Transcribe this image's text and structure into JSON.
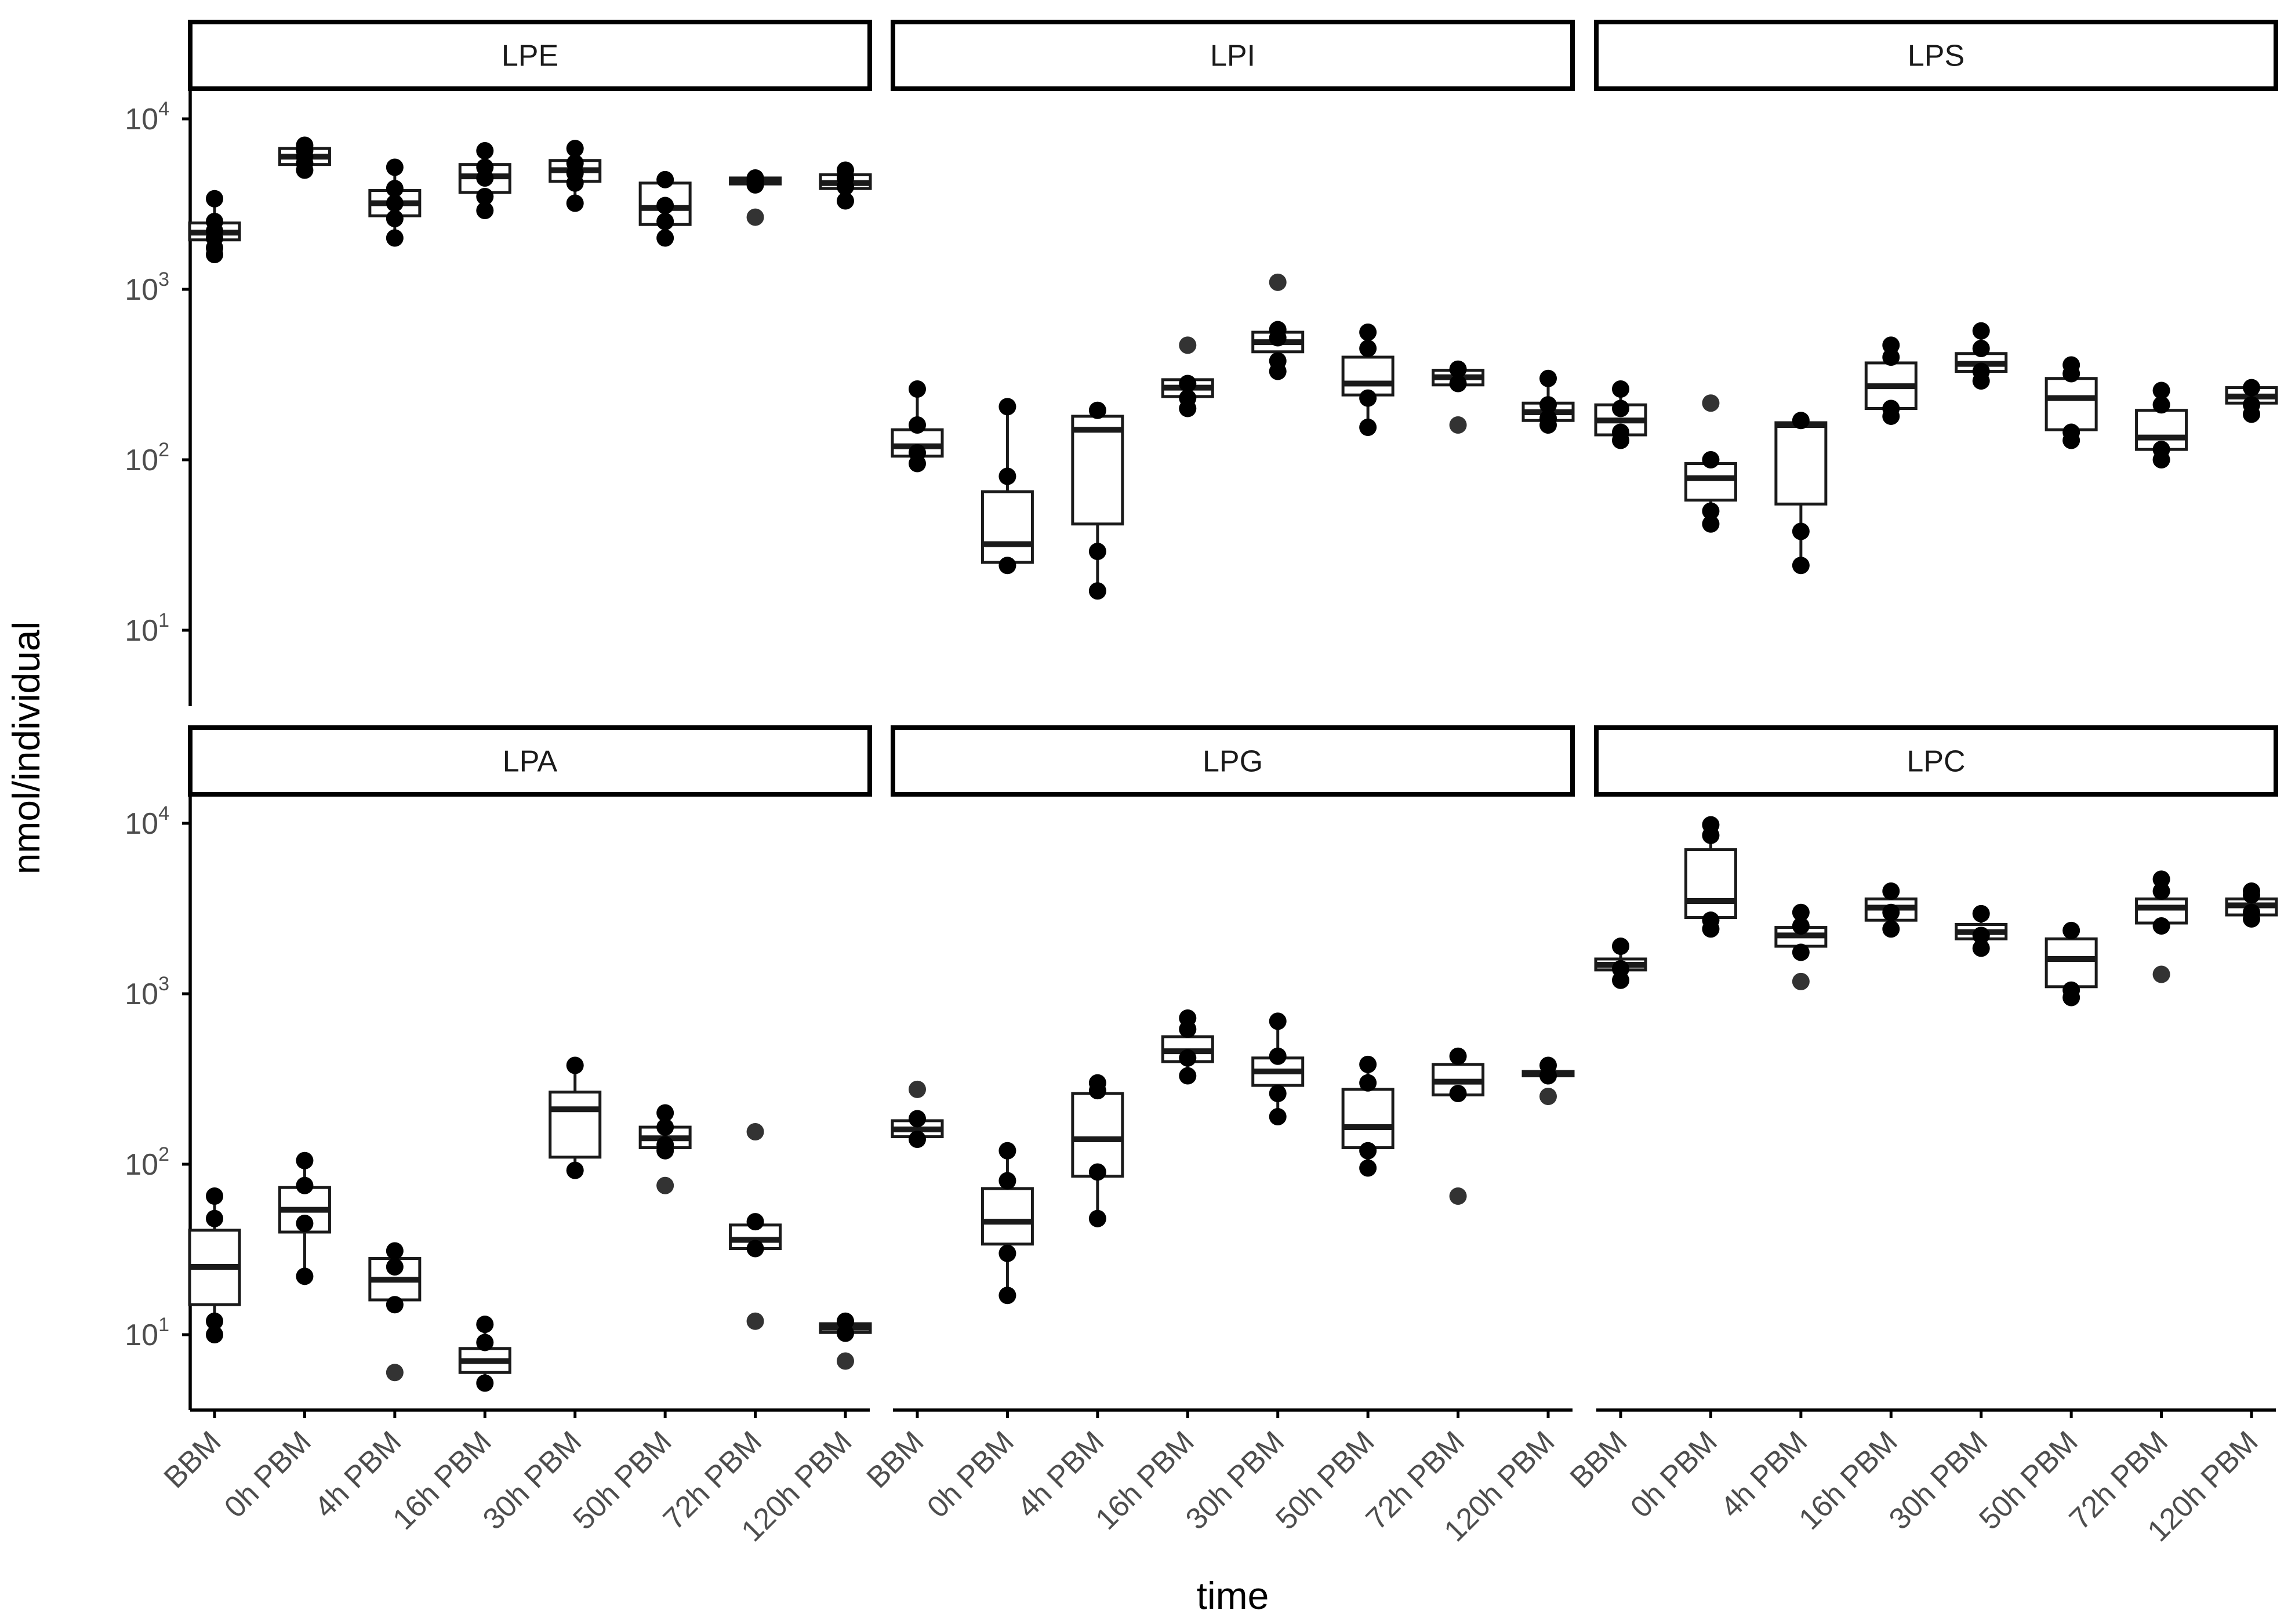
{
  "chart_data": {
    "type": "box",
    "scale": "log10",
    "xlabel": "time",
    "ylabel": "nmol/individual",
    "categories": [
      "BBM",
      "0h PBM",
      "4h PBM",
      "16h PBM",
      "30h PBM",
      "50h PBM",
      "72h PBM",
      "120h PBM"
    ],
    "y_ticks": [
      {
        "value": 10,
        "base": "10",
        "exp": "1"
      },
      {
        "value": 100,
        "base": "10",
        "exp": "2"
      },
      {
        "value": 1000,
        "base": "10",
        "exp": "3"
      },
      {
        "value": 10000,
        "base": "10",
        "exp": "4"
      }
    ],
    "panels": [
      {
        "name": "LPE",
        "boxes": [
          {
            "q1": 1950,
            "median": 2150,
            "q3": 2450,
            "wlo": 1600,
            "whi": 3400,
            "points": [
              1600,
              1750,
              2000,
              2200,
              2500,
              3400
            ],
            "outliers": []
          },
          {
            "q1": 5400,
            "median": 6000,
            "q3": 6700,
            "wlo": 5000,
            "whi": 7000,
            "points": [
              5000,
              5500,
              6000,
              6500,
              7000
            ],
            "outliers": []
          },
          {
            "q1": 2700,
            "median": 3200,
            "q3": 3800,
            "wlo": 2000,
            "whi": 5200,
            "points": [
              2000,
              2600,
              3200,
              3900,
              5200
            ],
            "outliers": []
          },
          {
            "q1": 3700,
            "median": 4600,
            "q3": 5400,
            "wlo": 2900,
            "whi": 6500,
            "points": [
              2900,
              3500,
              4500,
              5200,
              6500
            ],
            "outliers": []
          },
          {
            "q1": 4300,
            "median": 5000,
            "q3": 5700,
            "wlo": 3200,
            "whi": 6700,
            "points": [
              3200,
              4200,
              4800,
              5500,
              6700
            ],
            "outliers": []
          },
          {
            "q1": 2400,
            "median": 3000,
            "q3": 4200,
            "wlo": 2000,
            "whi": 4400,
            "points": [
              2000,
              2500,
              3100,
              4400
            ],
            "outliers": []
          },
          {
            "q1": 4150,
            "median": 4300,
            "q3": 4500,
            "wlo": 4100,
            "whi": 4600,
            "points": [
              4100,
              4300,
              4500
            ],
            "outliers": [
              2650
            ]
          },
          {
            "q1": 3900,
            "median": 4200,
            "q3": 4700,
            "wlo": 3300,
            "whi": 5000,
            "points": [
              3300,
              4000,
              4500,
              5000
            ],
            "outliers": []
          }
        ]
      },
      {
        "name": "LPI",
        "boxes": [
          {
            "q1": 105,
            "median": 120,
            "q3": 150,
            "wlo": 95,
            "whi": 260,
            "points": [
              95,
              110,
              160,
              260
            ],
            "outliers": []
          },
          {
            "q1": 25,
            "median": 32,
            "q3": 65,
            "wlo": 24,
            "whi": 205,
            "points": [
              24,
              80,
              205
            ],
            "outliers": []
          },
          {
            "q1": 42,
            "median": 150,
            "q3": 180,
            "wlo": 17,
            "whi": 195,
            "points": [
              17,
              29,
              195
            ],
            "outliers": []
          },
          {
            "q1": 235,
            "median": 265,
            "q3": 295,
            "wlo": 200,
            "whi": 300,
            "points": [
              200,
              230,
              280
            ],
            "outliers": [
              470
            ]
          },
          {
            "q1": 430,
            "median": 490,
            "q3": 560,
            "wlo": 330,
            "whi": 600,
            "points": [
              330,
              380,
              520,
              580
            ],
            "outliers": [
              1100
            ]
          },
          {
            "q1": 240,
            "median": 280,
            "q3": 400,
            "wlo": 155,
            "whi": 560,
            "points": [
              155,
              230,
              450,
              560
            ],
            "outliers": []
          },
          {
            "q1": 275,
            "median": 305,
            "q3": 335,
            "wlo": 270,
            "whi": 350,
            "points": [
              280,
              340
            ],
            "outliers": [
              160
            ]
          },
          {
            "q1": 170,
            "median": 190,
            "q3": 215,
            "wlo": 160,
            "whi": 300,
            "points": [
              160,
              175,
              210,
              300
            ],
            "outliers": []
          }
        ]
      },
      {
        "name": "LPS",
        "boxes": [
          {
            "q1": 140,
            "median": 170,
            "q3": 210,
            "wlo": 130,
            "whi": 260,
            "points": [
              130,
              145,
              200,
              260
            ],
            "outliers": []
          },
          {
            "q1": 58,
            "median": 78,
            "q3": 95,
            "wlo": 42,
            "whi": 100,
            "points": [
              42,
              50,
              100
            ],
            "outliers": [
              215
            ]
          },
          {
            "q1": 55,
            "median": 160,
            "q3": 165,
            "wlo": 24,
            "whi": 170,
            "points": [
              24,
              38,
              170
            ],
            "outliers": []
          },
          {
            "q1": 200,
            "median": 270,
            "q3": 370,
            "wlo": 180,
            "whi": 470,
            "points": [
              180,
              200,
              400,
              470
            ],
            "outliers": []
          },
          {
            "q1": 330,
            "median": 365,
            "q3": 420,
            "wlo": 290,
            "whi": 570,
            "points": [
              290,
              330,
              450,
              570
            ],
            "outliers": []
          },
          {
            "q1": 150,
            "median": 230,
            "q3": 300,
            "wlo": 130,
            "whi": 360,
            "points": [
              130,
              145,
              320,
              360
            ],
            "outliers": []
          },
          {
            "q1": 115,
            "median": 135,
            "q3": 195,
            "wlo": 100,
            "whi": 255,
            "points": [
              100,
              115,
              210,
              255
            ],
            "outliers": []
          },
          {
            "q1": 215,
            "median": 235,
            "q3": 265,
            "wlo": 185,
            "whi": 270,
            "points": [
              185,
              210,
              265
            ],
            "outliers": []
          }
        ]
      },
      {
        "name": "LPA",
        "boxes": [
          {
            "q1": 15,
            "median": 25,
            "q3": 41,
            "wlo": 10,
            "whi": 65,
            "points": [
              10,
              12,
              48,
              65
            ],
            "outliers": []
          },
          {
            "q1": 40,
            "median": 54,
            "q3": 73,
            "wlo": 22,
            "whi": 105,
            "points": [
              22,
              45,
              75,
              105
            ],
            "outliers": []
          },
          {
            "q1": 16,
            "median": 21,
            "q3": 28,
            "wlo": 15,
            "whi": 31,
            "points": [
              15,
              25,
              31
            ],
            "outliers": [
              6
            ]
          },
          {
            "q1": 6,
            "median": 7,
            "q3": 8.3,
            "wlo": 5.2,
            "whi": 11.5,
            "points": [
              5.2,
              9,
              11.5
            ],
            "outliers": []
          },
          {
            "q1": 110,
            "median": 210,
            "q3": 265,
            "wlo": 92,
            "whi": 380,
            "points": [
              92,
              380
            ],
            "outliers": []
          },
          {
            "q1": 125,
            "median": 142,
            "q3": 165,
            "wlo": 120,
            "whi": 200,
            "points": [
              120,
              130,
              165,
              200
            ],
            "outliers": [
              75
            ]
          },
          {
            "q1": 32,
            "median": 36,
            "q3": 44,
            "wlo": 32,
            "whi": 46,
            "points": [
              32,
              46
            ],
            "outliers": [
              12,
              155
            ]
          },
          {
            "q1": 10.3,
            "median": 11,
            "q3": 11.6,
            "wlo": 10,
            "whi": 12.2,
            "points": [
              10.2,
              12
            ],
            "outliers": [
              7
            ]
          }
        ]
      },
      {
        "name": "LPG",
        "boxes": [
          {
            "q1": 145,
            "median": 160,
            "q3": 180,
            "wlo": 140,
            "whi": 185,
            "points": [
              140,
              185
            ],
            "outliers": [
              275
            ]
          },
          {
            "q1": 34,
            "median": 46,
            "q3": 72,
            "wlo": 17,
            "whi": 120,
            "points": [
              17,
              30,
              80,
              120
            ],
            "outliers": []
          },
          {
            "q1": 85,
            "median": 140,
            "q3": 260,
            "wlo": 48,
            "whi": 300,
            "points": [
              48,
              90,
              270,
              300
            ],
            "outliers": []
          },
          {
            "q1": 400,
            "median": 460,
            "q3": 560,
            "wlo": 330,
            "whi": 720,
            "points": [
              330,
              420,
              620,
              720
            ],
            "outliers": []
          },
          {
            "q1": 290,
            "median": 350,
            "q3": 420,
            "wlo": 190,
            "whi": 690,
            "points": [
              190,
              260,
              430,
              690
            ],
            "outliers": []
          },
          {
            "q1": 125,
            "median": 165,
            "q3": 275,
            "wlo": 95,
            "whi": 385,
            "points": [
              95,
              120,
              300,
              385
            ],
            "outliers": []
          },
          {
            "q1": 255,
            "median": 305,
            "q3": 385,
            "wlo": 250,
            "whi": 430,
            "points": [
              260,
              430
            ],
            "outliers": [
              65
            ]
          },
          {
            "q1": 330,
            "median": 340,
            "q3": 350,
            "wlo": 330,
            "whi": 380,
            "points": [
              330,
              380
            ],
            "outliers": [
              250
            ]
          }
        ]
      },
      {
        "name": "LPC",
        "boxes": [
          {
            "q1": 1380,
            "median": 1480,
            "q3": 1600,
            "wlo": 1200,
            "whi": 1900,
            "points": [
              1200,
              1400,
              1900
            ],
            "outliers": []
          },
          {
            "q1": 2800,
            "median": 3500,
            "q3": 7000,
            "wlo": 2400,
            "whi": 9800,
            "points": [
              2400,
              2700,
              8500,
              9800
            ],
            "outliers": []
          },
          {
            "q1": 1900,
            "median": 2200,
            "q3": 2450,
            "wlo": 1750,
            "whi": 3000,
            "points": [
              1750,
              2500,
              3000
            ],
            "outliers": [
              1180
            ]
          },
          {
            "q1": 2700,
            "median": 3200,
            "q3": 3600,
            "wlo": 2400,
            "whi": 4000,
            "points": [
              2400,
              3000,
              4000
            ],
            "outliers": []
          },
          {
            "q1": 2100,
            "median": 2300,
            "q3": 2550,
            "wlo": 1850,
            "whi": 2950,
            "points": [
              1850,
              2200,
              2950
            ],
            "outliers": []
          },
          {
            "q1": 1100,
            "median": 1600,
            "q3": 2100,
            "wlo": 950,
            "whi": 2350,
            "points": [
              950,
              1050,
              2350
            ],
            "outliers": []
          },
          {
            "q1": 2600,
            "median": 3200,
            "q3": 3600,
            "wlo": 2500,
            "whi": 4700,
            "points": [
              2500,
              4000,
              4700
            ],
            "outliers": [
              1300
            ]
          },
          {
            "q1": 2900,
            "median": 3300,
            "q3": 3600,
            "wlo": 2750,
            "whi": 4000,
            "points": [
              2750,
              3000,
              3800,
              4000
            ],
            "outliers": []
          }
        ]
      }
    ]
  }
}
